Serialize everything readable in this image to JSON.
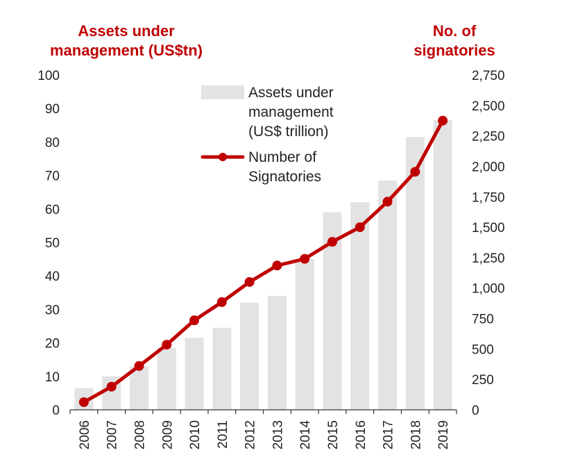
{
  "chart_data": {
    "type": "bar+line",
    "categories": [
      "2006",
      "2007",
      "2008",
      "2009",
      "2010",
      "2011",
      "2012",
      "2013",
      "2014",
      "2015",
      "2016",
      "2017",
      "2018",
      "2019"
    ],
    "series": [
      {
        "name": "Assets under management (US$ trillion)",
        "type": "bar",
        "axis": "left",
        "values": [
          6.5,
          10,
          13,
          18.5,
          21.5,
          24.5,
          32,
          34,
          45,
          59,
          62,
          68.5,
          81.5,
          86.5
        ]
      },
      {
        "name": "Number of Signatories",
        "type": "line",
        "axis": "right",
        "values": [
          63,
          190,
          360,
          535,
          735,
          885,
          1050,
          1185,
          1240,
          1380,
          1500,
          1710,
          1955,
          2375
        ]
      }
    ],
    "left_axis": {
      "title_line1": "Assets under",
      "title_line2": "management (US$tn)",
      "min": 0,
      "max": 100,
      "step": 10,
      "ticks": [
        "0",
        "10",
        "20",
        "30",
        "40",
        "50",
        "60",
        "70",
        "80",
        "90",
        "100"
      ]
    },
    "right_axis": {
      "title_line1": "No. of",
      "title_line2": "signatories",
      "min": 0,
      "max": 2750,
      "step": 250,
      "ticks": [
        "0",
        "250",
        "500",
        "750",
        "1,000",
        "1,250",
        "1,500",
        "1,750",
        "2,000",
        "2,250",
        "2,500",
        "2,750"
      ]
    },
    "legend": {
      "placement": "top-center",
      "bar_label_lines": [
        "Assets under",
        "management",
        "(US$ trillion)"
      ],
      "line_label_lines": [
        "Number of",
        "Signatories"
      ]
    },
    "colors": {
      "bar": "#e3e3e3",
      "line": "#c00000",
      "axis_title": "#c00000",
      "axis": "#333333"
    },
    "grid": false
  }
}
